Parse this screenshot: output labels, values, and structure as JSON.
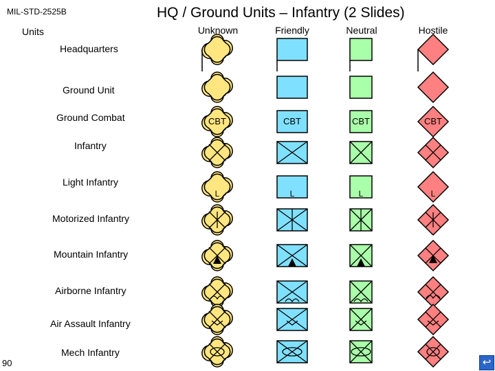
{
  "header": {
    "doc_tag": "MIL-STD-2525B",
    "title": "HQ / Ground Units – Infantry (2 Slides)",
    "units_label": "Units"
  },
  "columns": [
    {
      "key": "unknown",
      "label": "Unknown",
      "fill": "#ffe680"
    },
    {
      "key": "friendly",
      "label": "Friendly",
      "fill": "#80e0ff"
    },
    {
      "key": "neutral",
      "label": "Neutral",
      "fill": "#aaffaa"
    },
    {
      "key": "hostile",
      "label": "Hostile",
      "fill": "#ff8080"
    }
  ],
  "rows": [
    {
      "key": "headquarters",
      "label": "Headquarters",
      "modifier": "hq"
    },
    {
      "key": "ground-unit",
      "label": "Ground Unit",
      "modifier": "none"
    },
    {
      "key": "ground-combat",
      "label": "Ground Combat",
      "modifier": "text",
      "text": "CBT"
    },
    {
      "key": "infantry",
      "label": "Infantry",
      "modifier": "cross"
    },
    {
      "key": "light-infantry",
      "label": "Light Infantry",
      "modifier": "light",
      "text": "L"
    },
    {
      "key": "motorized-infantry",
      "label": "Motorized Infantry",
      "modifier": "motorized"
    },
    {
      "key": "mountain-infantry",
      "label": "Mountain Infantry",
      "modifier": "mountain"
    },
    {
      "key": "airborne-infantry",
      "label": "Airborne Infantry",
      "modifier": "airborne"
    },
    {
      "key": "air-assault-infantry",
      "label": "Air Assault Infantry",
      "modifier": "airassault"
    },
    {
      "key": "mech-infantry",
      "label": "Mech Infantry",
      "modifier": "mech"
    }
  ],
  "footer": {
    "page_number": "90",
    "next_icon": "return-arrow-icon"
  }
}
